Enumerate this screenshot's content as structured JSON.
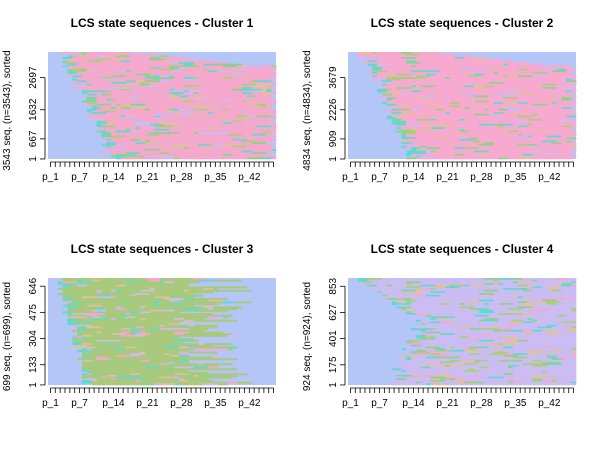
{
  "chart_data": [
    {
      "type": "heatmap",
      "title": "LCS state sequences - Cluster 1",
      "ylabel": "3543 seq. (n=3543), sorted",
      "n_sequences": 3543,
      "n_positions": 47,
      "x_tick_labels": [
        "p_1",
        "p_7",
        "p_14",
        "p_21",
        "p_28",
        "p_35",
        "p_42"
      ],
      "y_tick_labels": [
        "1",
        "667",
        "1632",
        "2697"
      ],
      "base_color": "#b3c6f7",
      "main_color": "#f4a8cc",
      "state_colors": [
        "#b3c6f7",
        "#f4a8cc",
        "#cbbcf2",
        "#aace7a",
        "#e2c09a",
        "#5fd9d2",
        "#8fd18a"
      ]
    },
    {
      "type": "heatmap",
      "title": "LCS state sequences - Cluster 2",
      "ylabel": "4834 seq. (n=4834), sorted",
      "n_sequences": 4834,
      "n_positions": 47,
      "x_tick_labels": [
        "p_1",
        "p_7",
        "p_14",
        "p_21",
        "p_28",
        "p_35",
        "p_42"
      ],
      "y_tick_labels": [
        "1",
        "909",
        "2226",
        "3679"
      ],
      "base_color": "#b3c6f7",
      "main_color": "#f7a9cf",
      "state_colors": [
        "#b3c6f7",
        "#f7a9cf",
        "#cbbcf2",
        "#aace7a",
        "#e2c09a",
        "#5fd9d2",
        "#8fd18a"
      ]
    },
    {
      "type": "heatmap",
      "title": "LCS state sequences - Cluster 3",
      "ylabel": "699 seq. (n=699), sorted",
      "n_sequences": 699,
      "n_positions": 47,
      "x_tick_labels": [
        "p_1",
        "p_7",
        "p_14",
        "p_21",
        "p_28",
        "p_35",
        "p_42"
      ],
      "y_tick_labels": [
        "1",
        "133",
        "304",
        "475",
        "646"
      ],
      "base_color": "#b3c6f7",
      "main_color": "#a9c97c",
      "state_colors": [
        "#b3c6f7",
        "#a9c97c",
        "#cbbcf2",
        "#f4a8cc",
        "#e2c09a",
        "#5fd9d2",
        "#8fd18a"
      ]
    },
    {
      "type": "heatmap",
      "title": "LCS state sequences - Cluster 4",
      "ylabel": "924 seq. (n=924), sorted",
      "n_sequences": 924,
      "n_positions": 47,
      "x_tick_labels": [
        "p_1",
        "p_7",
        "p_14",
        "p_21",
        "p_28",
        "p_35",
        "p_42"
      ],
      "y_tick_labels": [
        "1",
        "175",
        "401",
        "627",
        "853"
      ],
      "base_color": "#b3c6f7",
      "main_color": "#cbbcf2",
      "state_colors": [
        "#b3c6f7",
        "#cbbcf2",
        "#f4a8cc",
        "#aace7a",
        "#e2c09a",
        "#5fd9d2",
        "#8fd18a"
      ]
    }
  ]
}
